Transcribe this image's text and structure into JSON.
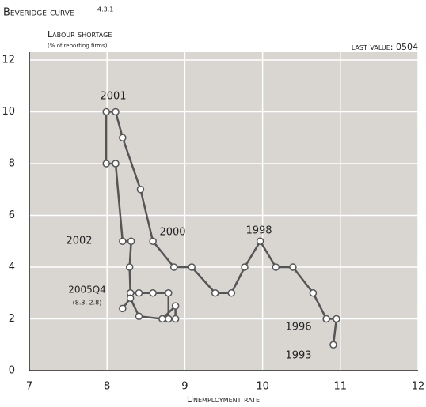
{
  "chart_data": {
    "type": "line",
    "title": "Beveridge curve",
    "title_ref": "4.3.1",
    "y_label": "Labour shortage",
    "y_sublabel": "(% of reporting firms)",
    "note": "last value: 0504",
    "x_label": "Unemployment rate",
    "xlim": [
      7,
      12
    ],
    "ylim": [
      0,
      12
    ],
    "xticks": [
      7,
      8,
      9,
      10,
      11,
      12
    ],
    "yticks": [
      0,
      2,
      4,
      6,
      8,
      10,
      12
    ],
    "grid": true,
    "series": [
      {
        "color": "#555555",
        "x": [
          10.91,
          10.95,
          10.82,
          10.65,
          10.39,
          10.17,
          9.97,
          9.77,
          9.6,
          9.39,
          9.09,
          8.86,
          8.59,
          8.43,
          8.2,
          8.11,
          7.99,
          7.99,
          8.11,
          8.2,
          8.31,
          8.29,
          8.3,
          8.41,
          8.59,
          8.79,
          8.79,
          8.88,
          8.88,
          8.71,
          8.41,
          8.3,
          8.2
        ],
        "values": [
          1.0,
          2.0,
          2.0,
          3.0,
          4.0,
          4.0,
          5.0,
          4.0,
          3.0,
          3.0,
          4.0,
          4.0,
          5.0,
          7.0,
          9.0,
          10.0,
          10.0,
          8.0,
          8.0,
          5.0,
          5.0,
          4.0,
          3.0,
          3.0,
          3.0,
          3.0,
          2.0,
          2.0,
          2.5,
          2.0,
          2.1,
          2.8,
          2.4
        ]
      }
    ],
    "annotations": [
      "2001",
      "2000",
      "1998",
      "2002",
      "2005Q4",
      "(8.3, 2.8)",
      "1996",
      "1993"
    ]
  }
}
